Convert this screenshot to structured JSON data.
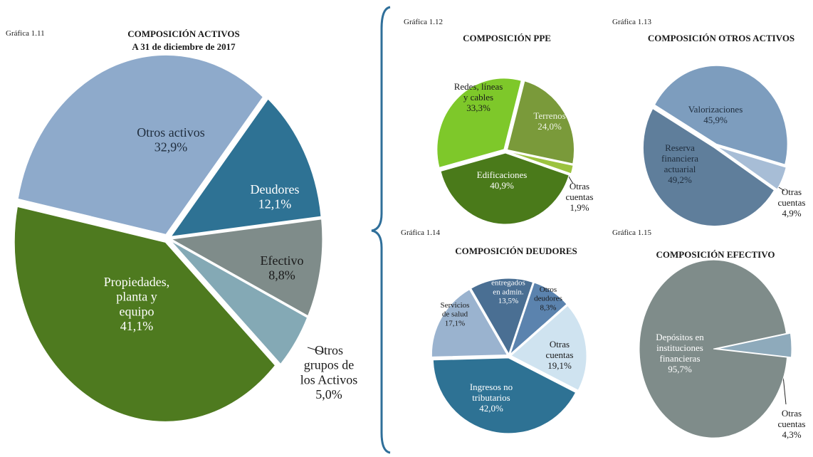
{
  "chart_data": [
    {
      "type": "pie",
      "figure_label": "Gráfica 1.11",
      "title": "COMPOSICIÓN ACTIVOS",
      "subtitle": "A 31 de diciembre  de 2017",
      "categories": [
        "Deudores",
        "Efectivo",
        "Otros grupos de los Activos",
        "Propiedades, planta y equipo",
        "Otros activos"
      ],
      "values": [
        12.1,
        8.8,
        5.0,
        41.1,
        32.9
      ],
      "value_labels": [
        "12,1%",
        "8,8%",
        "5,0%",
        "41,1%",
        "32,9%"
      ],
      "colors": [
        "#2e7294",
        "#7f8c8a",
        "#84a9b5",
        "#4e7a1f",
        "#8eaacb"
      ]
    },
    {
      "type": "pie",
      "figure_label": "Gráfica  1.12",
      "title": "COMPOSICIÓN PPE",
      "categories": [
        "Terrenos",
        "Otras cuentas",
        "Edificaciones",
        "Redes, líneas y cables"
      ],
      "values": [
        24.0,
        1.9,
        40.9,
        33.3
      ],
      "value_labels": [
        "24,0%",
        "1,9%",
        "40,9%",
        "33,3%"
      ],
      "colors": [
        "#7a9a3a",
        "#9cc33f",
        "#4a7a1a",
        "#7ec82a"
      ]
    },
    {
      "type": "pie",
      "figure_label": "Gráfica 1.13",
      "title": "COMPOSICIÓN OTROS ACTIVOS",
      "categories": [
        "Valorizaciones",
        "Otras cuentas",
        "Reserva financiera actuarial"
      ],
      "values": [
        45.9,
        4.9,
        49.2
      ],
      "value_labels": [
        "45,9%",
        "4,9%",
        "49,2%"
      ],
      "colors": [
        "#7d9dbe",
        "#a7bdd6",
        "#5f7e9b"
      ]
    },
    {
      "type": "pie",
      "figure_label": "Gráfica  1.14",
      "title": "COMPOSICIÓN DEUDORES",
      "categories": [
        "Recursos entregados en admin.",
        "Otros deudores",
        "Otras cuentas",
        "Ingresos no tributarios",
        "Servicios de salud"
      ],
      "values": [
        13.5,
        8.3,
        19.1,
        42.0,
        17.1
      ],
      "value_labels": [
        "13,5%",
        "8,3%",
        "19,1%",
        "42,0%",
        "17,1%"
      ],
      "colors": [
        "#4a6f93",
        "#5b83ae",
        "#cfe3f0",
        "#2e7294",
        "#9ab3cf"
      ]
    },
    {
      "type": "pie",
      "figure_label": "Gráfica 1.15",
      "title": "COMPOSICIÓN EFECTIVO",
      "categories": [
        "Otras cuentas",
        "Depósitos  en instituciones financieras"
      ],
      "values": [
        4.3,
        95.7
      ],
      "value_labels": [
        "4,3%",
        "95,7%"
      ],
      "colors": [
        "#8eaabb",
        "#7f8c8a"
      ]
    }
  ]
}
